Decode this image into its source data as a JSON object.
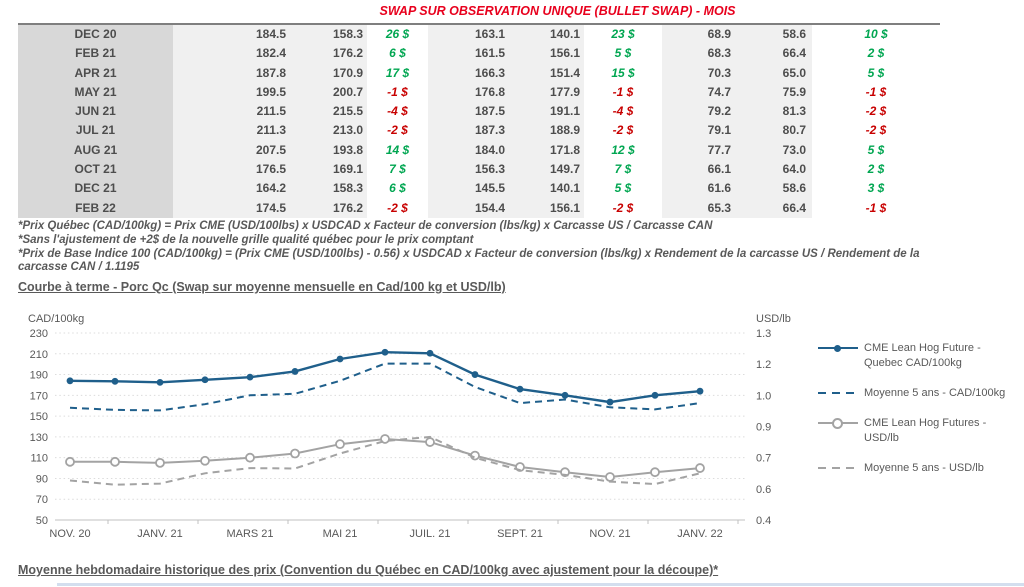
{
  "title": "SWAP SUR OBSERVATION UNIQUE (BULLET SWAP) - MOIS",
  "table": {
    "rows": [
      {
        "month": "DEC 20",
        "values": [
          "184.5",
          "158.3",
          "26 $",
          "163.1",
          "140.1",
          "23 $",
          "68.9",
          "58.6",
          "10 $"
        ]
      },
      {
        "month": "FEB 21",
        "values": [
          "182.4",
          "176.2",
          "6 $",
          "161.5",
          "156.1",
          "5 $",
          "68.3",
          "66.4",
          "2 $"
        ]
      },
      {
        "month": "APR 21",
        "values": [
          "187.8",
          "170.9",
          "17 $",
          "166.3",
          "151.4",
          "15 $",
          "70.3",
          "65.0",
          "5 $"
        ]
      },
      {
        "month": "MAY 21",
        "values": [
          "199.5",
          "200.7",
          "-1 $",
          "176.8",
          "177.9",
          "-1 $",
          "74.7",
          "75.9",
          "-1 $"
        ]
      },
      {
        "month": "JUN 21",
        "values": [
          "211.5",
          "215.5",
          "-4 $",
          "187.5",
          "191.1",
          "-4 $",
          "79.2",
          "81.3",
          "-2 $"
        ]
      },
      {
        "month": "JUL 21",
        "values": [
          "211.3",
          "213.0",
          "-2 $",
          "187.3",
          "188.9",
          "-2 $",
          "79.1",
          "80.7",
          "-2 $"
        ]
      },
      {
        "month": "AUG 21",
        "values": [
          "207.5",
          "193.8",
          "14 $",
          "184.0",
          "171.8",
          "12 $",
          "77.7",
          "73.0",
          "5 $"
        ]
      },
      {
        "month": "OCT 21",
        "values": [
          "176.5",
          "169.1",
          "7 $",
          "156.3",
          "149.7",
          "7 $",
          "66.1",
          "64.0",
          "2 $"
        ]
      },
      {
        "month": "DEC 21",
        "values": [
          "164.2",
          "158.3",
          "6 $",
          "145.5",
          "140.1",
          "5 $",
          "61.6",
          "58.6",
          "3 $"
        ]
      },
      {
        "month": "FEB 22",
        "values": [
          "174.5",
          "176.2",
          "-2 $",
          "154.4",
          "156.1",
          "-2 $",
          "65.3",
          "66.4",
          "-1 $"
        ]
      }
    ]
  },
  "footnotes": [
    "*Prix Québec (CAD/100kg) = Prix CME (USD/100lbs) x USDCAD x Facteur de conversion (lbs/kg) x Carcasse US / Carcasse CAN",
    "*Sans l'ajustement de +2$ de la nouvelle grille qualité québec pour le prix comptant",
    "*Prix de Base Indice 100 (CAD/100kg) = (Prix CME (USD/100lbs) - 0.56) x USDCAD x Facteur de conversion (lbs/kg) x Rendement de la carcasse US / Rendement de la",
    "carcasse CAN / 1.1195"
  ],
  "forward_curve_heading": "Courbe à terme - Porc Qc (Swap sur moyenne mensuelle en Cad/100 kg et USD/lb)",
  "weekly_heading": "Moyenne hebdomadaire historique des prix (Convention du Québec en CAD/100kg avec ajustement pour la découpe)*",
  "colors": {
    "accent_blue": "#1f5f8b",
    "accent_gray": "#a3a3a3",
    "positive_green": "#00a651",
    "negative_red": "#c80000",
    "title_red": "#e8001d"
  },
  "chart_data": {
    "type": "line",
    "title": "Courbe à terme - Porc Qc (Swap sur moyenne mensuelle en Cad/100 kg et USD/lb)",
    "grid": true,
    "legend_position": "right",
    "x_axis_labels": [
      "NOV. 20",
      "JANV. 21",
      "MARS 21",
      "MAI 21",
      "JUIL. 21",
      "SEPT. 21",
      "NOV. 21",
      "JANV. 22"
    ],
    "left_axis": {
      "title": "CAD/100kg",
      "min": 50,
      "max": 230,
      "ticks": [
        230,
        210,
        190,
        170,
        150,
        130,
        110,
        90,
        70,
        50
      ]
    },
    "right_axis": {
      "title": "USD/lb",
      "min": 0.4,
      "max": 1.3,
      "tick_labels": [
        "1.3",
        "1.2",
        "1.0",
        "0.9",
        "0.7",
        "0.6",
        "0.4"
      ]
    },
    "x": [
      "NOV. 20",
      "DÉC. 20",
      "JANV. 21",
      "FÉVR. 21",
      "MARS 21",
      "AVR. 21",
      "MAI 21",
      "JUIN 21",
      "JUIL. 21",
      "AOÛT 21",
      "SEPT. 21",
      "OCT. 21",
      "NOV. 21",
      "DÉC. 21",
      "JANV. 22"
    ],
    "series": [
      {
        "name": "CME Lean Hog Future - Quebec CAD/100kg",
        "axis": "cad",
        "style": "solid",
        "marker": "filled",
        "color": "#1f5f8b",
        "values": [
          184,
          183.5,
          182.5,
          185,
          187.5,
          193,
          205,
          211.5,
          210.5,
          190,
          176,
          170,
          163.5,
          170,
          174
        ]
      },
      {
        "name": "Moyenne 5 ans - CAD/100kg",
        "axis": "cad",
        "style": "dashed",
        "marker": "none",
        "color": "#1f5f8b",
        "values": [
          158,
          156,
          155.5,
          161.5,
          170,
          171.5,
          184,
          200.5,
          200.5,
          178,
          162.5,
          166,
          158.5,
          156.5,
          162.5
        ]
      },
      {
        "name": "CME Lean Hog Futures - USD/lb",
        "axis": "usd",
        "style": "solid",
        "marker": "open",
        "color": "#a3a3a3",
        "values": [
          0.68,
          0.68,
          0.675,
          0.685,
          0.7,
          0.72,
          0.765,
          0.79,
          0.775,
          0.71,
          0.655,
          0.63,
          0.607,
          0.63,
          0.65
        ]
      },
      {
        "name": "Moyenne 5 ans - USD/lb",
        "axis": "usd",
        "style": "dashed",
        "marker": "none",
        "color": "#a3a3a3",
        "values": [
          0.59,
          0.57,
          0.575,
          0.625,
          0.65,
          0.648,
          0.72,
          0.78,
          0.8,
          0.7,
          0.64,
          0.617,
          0.585,
          0.573,
          0.625
        ]
      }
    ]
  }
}
